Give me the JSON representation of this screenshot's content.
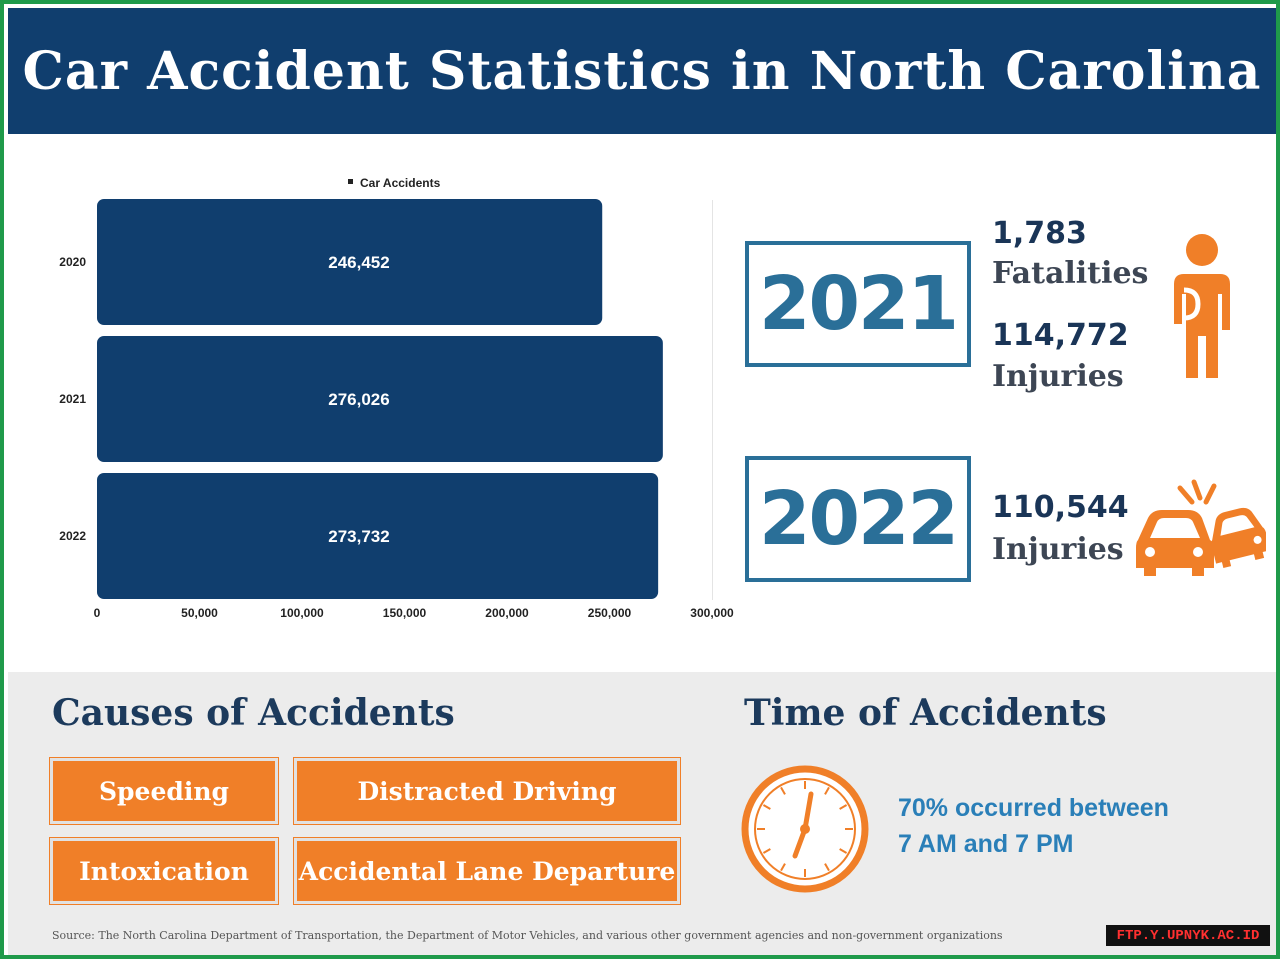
{
  "title": "Car Accident Statistics in North Carolina",
  "chart_data": {
    "type": "bar",
    "orientation": "horizontal",
    "legend": {
      "position": "top",
      "entries": [
        "Car Accidents"
      ]
    },
    "series": [
      {
        "name": "Car Accidents",
        "values": [
          246452,
          276026,
          273732
        ]
      }
    ],
    "categories": [
      "2020",
      "2021",
      "2022"
    ],
    "value_labels": [
      "246,452",
      "276,026",
      "273,732"
    ],
    "xlim": [
      0,
      300000
    ],
    "x_ticks": [
      0,
      50000,
      100000,
      150000,
      200000,
      250000,
      300000
    ],
    "x_tick_labels": [
      "0",
      "50,000",
      "100,000",
      "150,000",
      "200,000",
      "250,000",
      "300,000"
    ],
    "bar_color": "#103e6e",
    "grid": false
  },
  "stats": {
    "year_2021": {
      "year": "2021",
      "fatalities_value": "1,783",
      "fatalities_label": "Fatalities",
      "injuries_value": "114,772",
      "injuries_label": "Injuries",
      "icon": "injured-person-icon"
    },
    "year_2022": {
      "year": "2022",
      "injuries_value": "110,544",
      "injuries_label": "Injuries",
      "icon": "car-crash-icon"
    }
  },
  "causes": {
    "title": "Causes of Accidents",
    "items": [
      "Speeding",
      "Distracted Driving",
      "Intoxication",
      "Accidental Lane Departure"
    ]
  },
  "time": {
    "title": "Time of Accidents",
    "line1": "70% occurred between",
    "line2": "7 AM and 7 PM",
    "icon": "clock-icon"
  },
  "source": "Source: The North Carolina Department of Transportation, the Department of Motor Vehicles, and various other government agencies and non-government organizations",
  "watermark": "FTP.Y.UPNYK.AC.ID",
  "colors": {
    "header": "#103e6e",
    "accent_orange": "#f07f28",
    "year_blue": "#2a6f98",
    "border_green": "#1f9a4a"
  }
}
